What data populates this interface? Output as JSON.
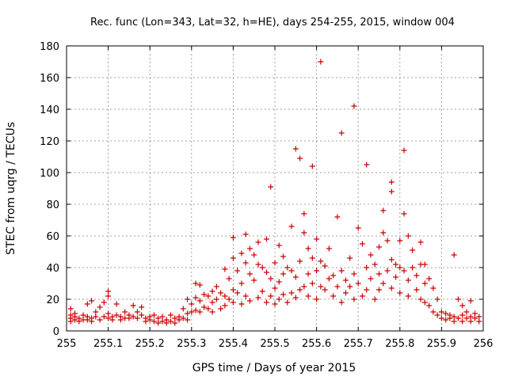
{
  "chart_data": {
    "type": "scatter",
    "title": "Rec. func (Lon=343, Lat=32, h=HE), days 254-255, 2015, window 004",
    "xlabel": "GPS time / Days of year 2015",
    "ylabel": "STEC from uqrg / TECUs",
    "xlim": [
      255.0,
      256.0
    ],
    "ylim": [
      0,
      180
    ],
    "xticks": [
      "255",
      "255.1",
      "255.2",
      "255.3",
      "255.4",
      "255.5",
      "255.6",
      "255.7",
      "255.8",
      "255.9",
      "256"
    ],
    "yticks": [
      "0",
      "20",
      "40",
      "60",
      "80",
      "100",
      "120",
      "140",
      "160",
      "180"
    ],
    "grid": true,
    "marker": "plus",
    "color": "#cc0000",
    "series": [
      {
        "points": [
          [
            255.01,
            14
          ],
          [
            255.01,
            10
          ],
          [
            255.01,
            8
          ],
          [
            255.01,
            6
          ],
          [
            255.02,
            11
          ],
          [
            255.02,
            9
          ],
          [
            255.02,
            7
          ],
          [
            255.03,
            8
          ],
          [
            255.03,
            6
          ],
          [
            255.04,
            10
          ],
          [
            255.04,
            7
          ],
          [
            255.05,
            17
          ],
          [
            255.05,
            9
          ],
          [
            255.05,
            7
          ],
          [
            255.06,
            19
          ],
          [
            255.06,
            8
          ],
          [
            255.06,
            6
          ],
          [
            255.07,
            12
          ],
          [
            255.07,
            9
          ],
          [
            255.08,
            15
          ],
          [
            255.08,
            7
          ],
          [
            255.09,
            18
          ],
          [
            255.09,
            9
          ],
          [
            255.1,
            22
          ],
          [
            255.1,
            25
          ],
          [
            255.1,
            11
          ],
          [
            255.1,
            8
          ],
          [
            255.11,
            9
          ],
          [
            255.11,
            7
          ],
          [
            255.12,
            17
          ],
          [
            255.12,
            10
          ],
          [
            255.13,
            9
          ],
          [
            255.13,
            7
          ],
          [
            255.14,
            12
          ],
          [
            255.14,
            8
          ],
          [
            255.15,
            10
          ],
          [
            255.15,
            8
          ],
          [
            255.16,
            9
          ],
          [
            255.16,
            16
          ],
          [
            255.17,
            8
          ],
          [
            255.17,
            12
          ],
          [
            255.18,
            15
          ],
          [
            255.18,
            10
          ],
          [
            255.19,
            8
          ],
          [
            255.19,
            6
          ],
          [
            255.2,
            9
          ],
          [
            255.2,
            7
          ],
          [
            255.21,
            10
          ],
          [
            255.21,
            6
          ],
          [
            255.22,
            8
          ],
          [
            255.22,
            5
          ],
          [
            255.23,
            9
          ],
          [
            255.23,
            6
          ],
          [
            255.24,
            7
          ],
          [
            255.24,
            5
          ],
          [
            255.25,
            10
          ],
          [
            255.25,
            6
          ],
          [
            255.26,
            8
          ],
          [
            255.26,
            5
          ],
          [
            255.27,
            9
          ],
          [
            255.27,
            7
          ],
          [
            255.28,
            14
          ],
          [
            255.28,
            8
          ],
          [
            255.29,
            20
          ],
          [
            255.29,
            11
          ],
          [
            255.29,
            7
          ],
          [
            255.3,
            17
          ],
          [
            255.3,
            12
          ],
          [
            255.31,
            30
          ],
          [
            255.31,
            21
          ],
          [
            255.31,
            13
          ],
          [
            255.32,
            29
          ],
          [
            255.32,
            19
          ],
          [
            255.32,
            12
          ],
          [
            255.33,
            23
          ],
          [
            255.33,
            15
          ],
          [
            255.34,
            22
          ],
          [
            255.34,
            14
          ],
          [
            255.35,
            25
          ],
          [
            255.35,
            18
          ],
          [
            255.35,
            12
          ],
          [
            255.36,
            28
          ],
          [
            255.36,
            20
          ],
          [
            255.37,
            24
          ],
          [
            255.37,
            14
          ],
          [
            255.38,
            39
          ],
          [
            255.38,
            22
          ],
          [
            255.38,
            16
          ],
          [
            255.39,
            33
          ],
          [
            255.39,
            20
          ],
          [
            255.4,
            46
          ],
          [
            255.4,
            59
          ],
          [
            255.4,
            26
          ],
          [
            255.4,
            18
          ],
          [
            255.41,
            38
          ],
          [
            255.41,
            24
          ],
          [
            255.42,
            49
          ],
          [
            255.42,
            30
          ],
          [
            255.42,
            17
          ],
          [
            255.43,
            61
          ],
          [
            255.43,
            43
          ],
          [
            255.43,
            22
          ],
          [
            255.44,
            52
          ],
          [
            255.44,
            36
          ],
          [
            255.44,
            19
          ],
          [
            255.45,
            48
          ],
          [
            255.45,
            32
          ],
          [
            255.46,
            56
          ],
          [
            255.46,
            42
          ],
          [
            255.46,
            21
          ],
          [
            255.47,
            40
          ],
          [
            255.47,
            25
          ],
          [
            255.48,
            58
          ],
          [
            255.48,
            37
          ],
          [
            255.48,
            18
          ],
          [
            255.49,
            91
          ],
          [
            255.49,
            33
          ],
          [
            255.49,
            22
          ],
          [
            255.5,
            43
          ],
          [
            255.5,
            27
          ],
          [
            255.5,
            17
          ],
          [
            255.51,
            54
          ],
          [
            255.51,
            31
          ],
          [
            255.51,
            20
          ],
          [
            255.52,
            47
          ],
          [
            255.52,
            36
          ],
          [
            255.52,
            23
          ],
          [
            255.53,
            40
          ],
          [
            255.53,
            18
          ],
          [
            255.54,
            66
          ],
          [
            255.54,
            38
          ],
          [
            255.54,
            24
          ],
          [
            255.55,
            115
          ],
          [
            255.55,
            34
          ],
          [
            255.55,
            21
          ],
          [
            255.56,
            109
          ],
          [
            255.56,
            44
          ],
          [
            255.56,
            26
          ],
          [
            255.57,
            74
          ],
          [
            255.57,
            62
          ],
          [
            255.57,
            28
          ],
          [
            255.58,
            52
          ],
          [
            255.58,
            36
          ],
          [
            255.58,
            22
          ],
          [
            255.59,
            104
          ],
          [
            255.59,
            46
          ],
          [
            255.59,
            30
          ],
          [
            255.6,
            58
          ],
          [
            255.6,
            38
          ],
          [
            255.6,
            20
          ],
          [
            255.61,
            170
          ],
          [
            255.61,
            44
          ],
          [
            255.61,
            28
          ],
          [
            255.62,
            41
          ],
          [
            255.62,
            26
          ],
          [
            255.63,
            52
          ],
          [
            255.63,
            33
          ],
          [
            255.64,
            35
          ],
          [
            255.64,
            22
          ],
          [
            255.65,
            72
          ],
          [
            255.65,
            28
          ],
          [
            255.66,
            125
          ],
          [
            255.66,
            38
          ],
          [
            255.66,
            18
          ],
          [
            255.67,
            32
          ],
          [
            255.67,
            24
          ],
          [
            255.68,
            46
          ],
          [
            255.68,
            28
          ],
          [
            255.69,
            142
          ],
          [
            255.69,
            36
          ],
          [
            255.69,
            20
          ],
          [
            255.7,
            65
          ],
          [
            255.7,
            30
          ],
          [
            255.71,
            55
          ],
          [
            255.71,
            22
          ],
          [
            255.72,
            105
          ],
          [
            255.72,
            40
          ],
          [
            255.72,
            26
          ],
          [
            255.73,
            48
          ],
          [
            255.73,
            33
          ],
          [
            255.74,
            42
          ],
          [
            255.74,
            20
          ],
          [
            255.75,
            53
          ],
          [
            255.75,
            36
          ],
          [
            255.75,
            26
          ],
          [
            255.76,
            76
          ],
          [
            255.76,
            62
          ],
          [
            255.76,
            30
          ],
          [
            255.77,
            57
          ],
          [
            255.77,
            38
          ],
          [
            255.78,
            94
          ],
          [
            255.78,
            88
          ],
          [
            255.78,
            45
          ],
          [
            255.78,
            27
          ],
          [
            255.79,
            42
          ],
          [
            255.79,
            34
          ],
          [
            255.8,
            57
          ],
          [
            255.8,
            40
          ],
          [
            255.8,
            24
          ],
          [
            255.81,
            114
          ],
          [
            255.81,
            74
          ],
          [
            255.81,
            38
          ],
          [
            255.82,
            60
          ],
          [
            255.82,
            32
          ],
          [
            255.82,
            22
          ],
          [
            255.83,
            51
          ],
          [
            255.83,
            40
          ],
          [
            255.84,
            35
          ],
          [
            255.84,
            26
          ],
          [
            255.85,
            56
          ],
          [
            255.85,
            42
          ],
          [
            255.85,
            20
          ],
          [
            255.86,
            42
          ],
          [
            255.86,
            30
          ],
          [
            255.86,
            18
          ],
          [
            255.87,
            33
          ],
          [
            255.87,
            16
          ],
          [
            255.88,
            27
          ],
          [
            255.88,
            12
          ],
          [
            255.89,
            20
          ],
          [
            255.89,
            10
          ],
          [
            255.9,
            12
          ],
          [
            255.9,
            8
          ],
          [
            255.91,
            11
          ],
          [
            255.91,
            7
          ],
          [
            255.92,
            10
          ],
          [
            255.92,
            8
          ],
          [
            255.93,
            48
          ],
          [
            255.93,
            9
          ],
          [
            255.93,
            6
          ],
          [
            255.94,
            20
          ],
          [
            255.94,
            8
          ],
          [
            255.95,
            16
          ],
          [
            255.95,
            10
          ],
          [
            255.95,
            6
          ],
          [
            255.96,
            12
          ],
          [
            255.96,
            8
          ],
          [
            255.97,
            19
          ],
          [
            255.97,
            9
          ],
          [
            255.97,
            6
          ],
          [
            255.98,
            11
          ],
          [
            255.98,
            8
          ],
          [
            255.99,
            9
          ],
          [
            255.99,
            6
          ]
        ]
      }
    ]
  }
}
